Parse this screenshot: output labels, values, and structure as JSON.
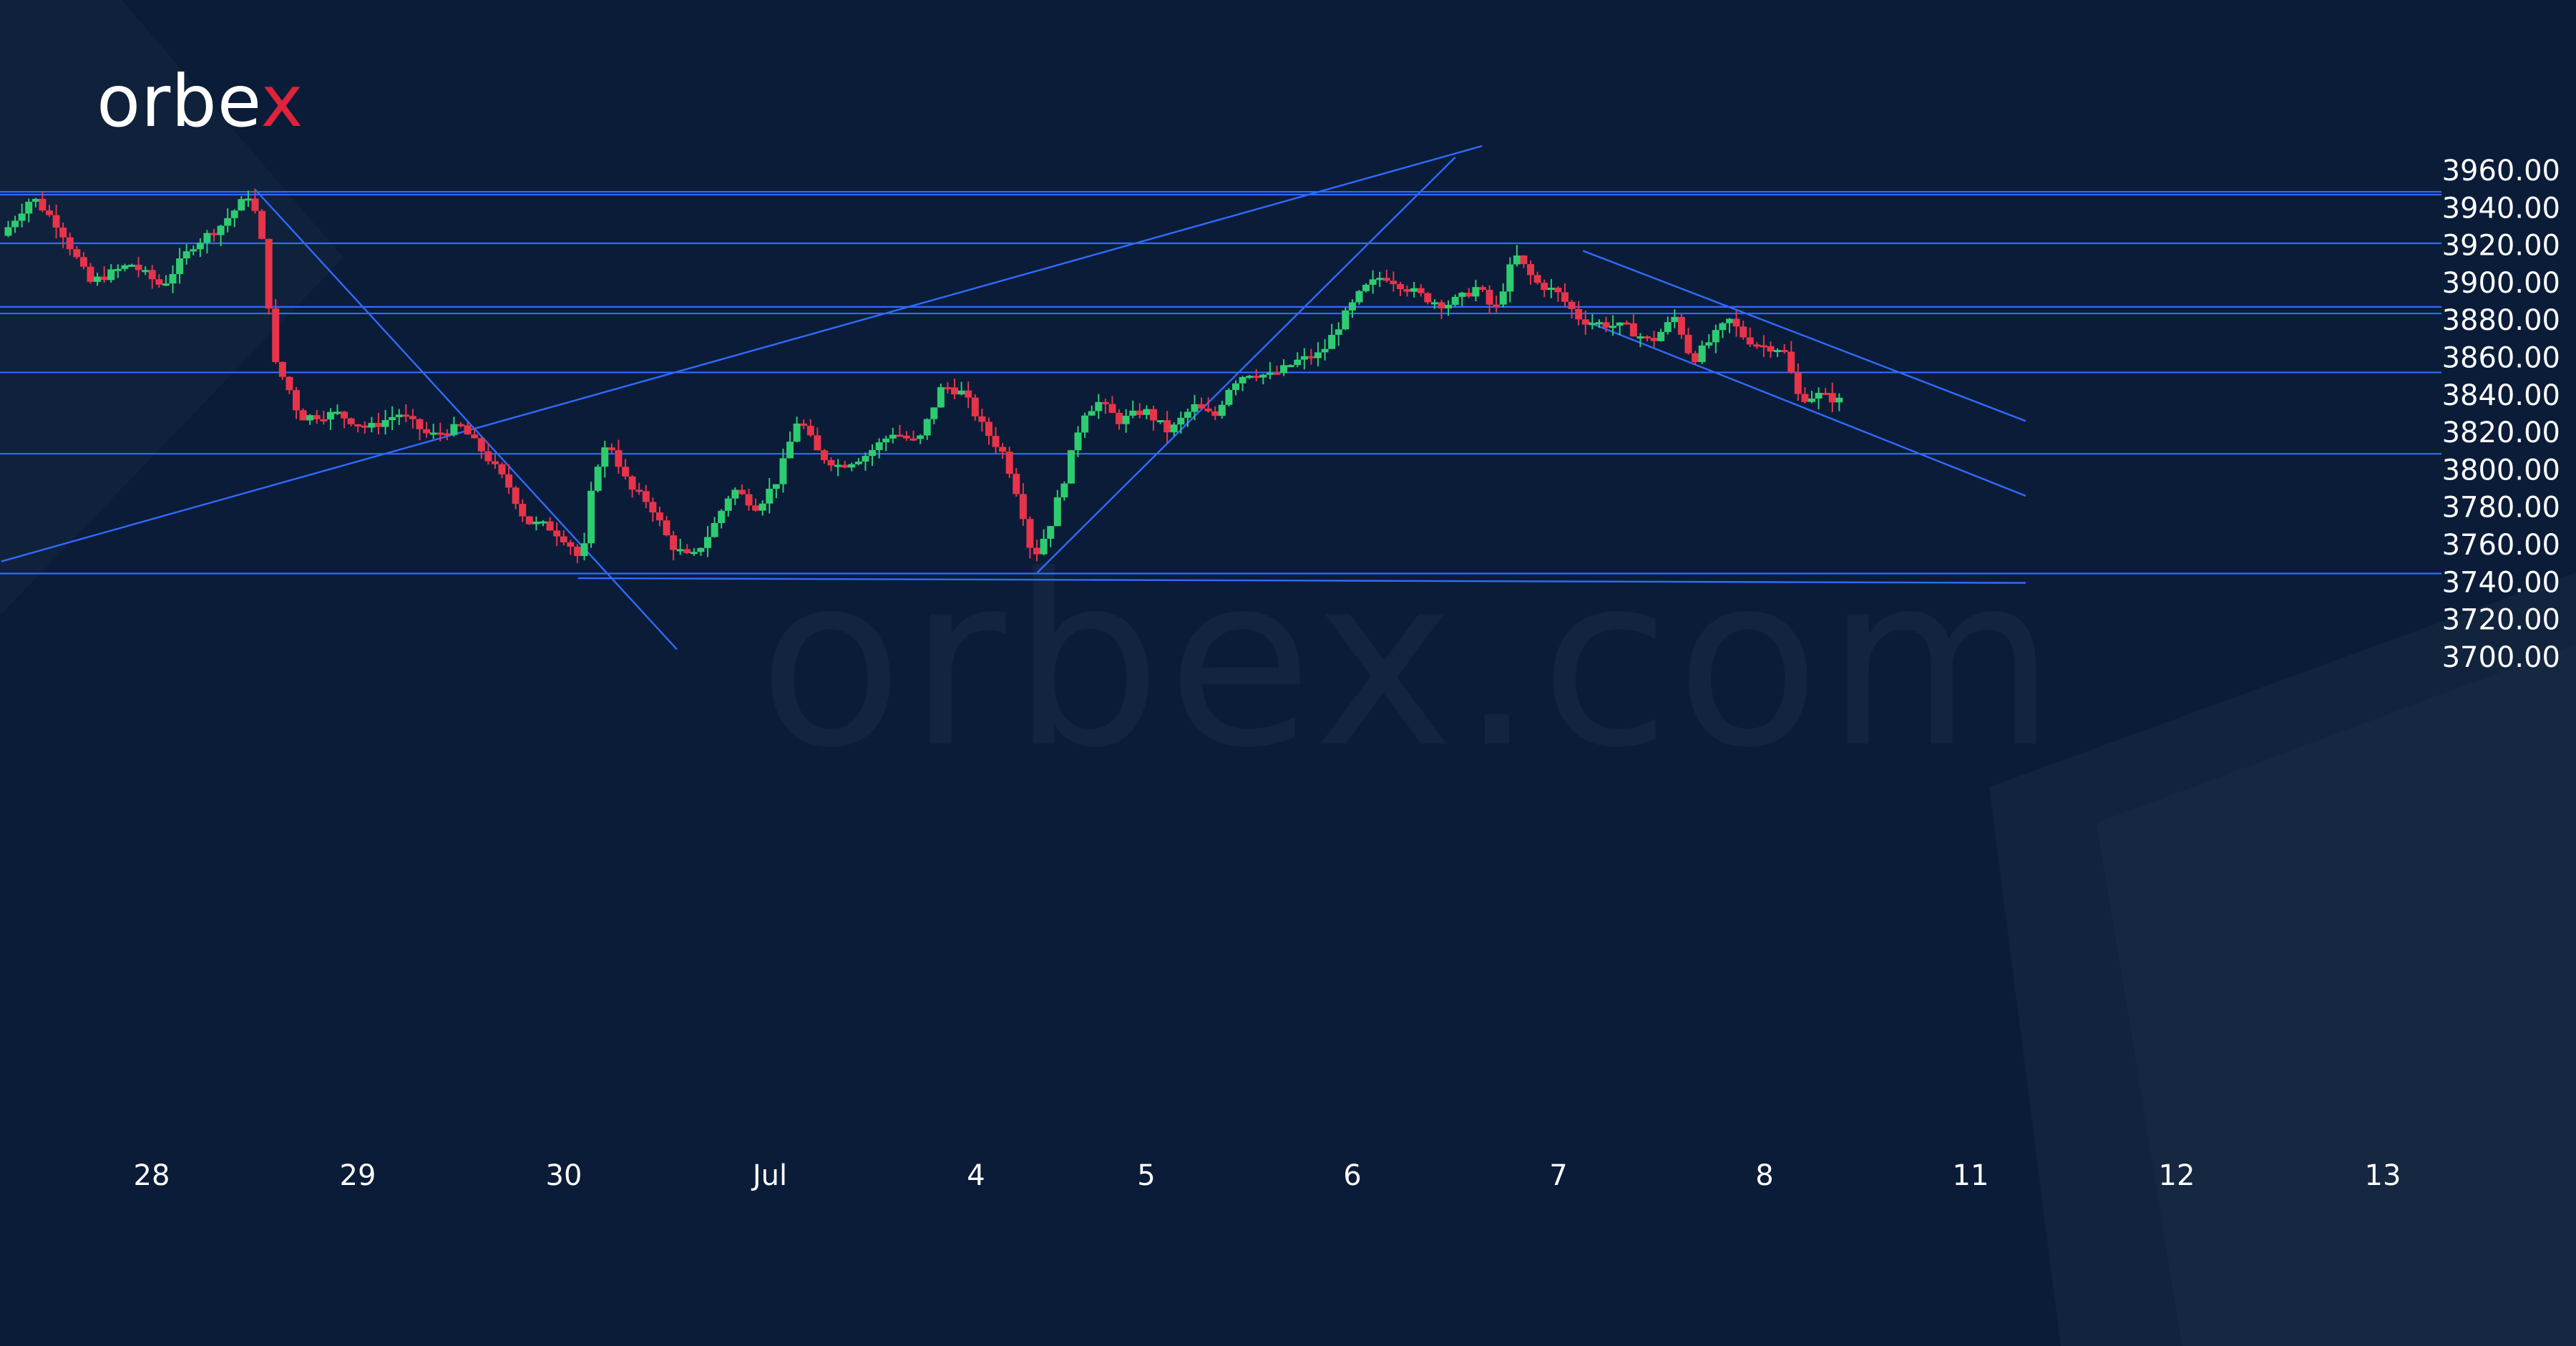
{
  "brand": {
    "logo_text_main": "orbe",
    "logo_text_accent": "x",
    "watermark": "orbex.com",
    "colors": {
      "background": "#0b1c38",
      "accent": "#e0233b",
      "text": "#ffffff"
    }
  },
  "chart_data": {
    "type": "candlestick",
    "title": "",
    "xlabel": "",
    "ylabel": "",
    "ylim": [
      3700,
      3975
    ],
    "y_ticks": [
      "3960.00",
      "3940.00",
      "3920.00",
      "3900.00",
      "3880.00",
      "3860.00",
      "3840.00",
      "3820.00",
      "3800.00",
      "3780.00",
      "3760.00",
      "3740.00",
      "3720.00",
      "3700.00"
    ],
    "x_ticks": [
      "28",
      "29",
      "30",
      "Jul",
      "4",
      "5",
      "6",
      "7",
      "8",
      "11",
      "12",
      "13"
    ],
    "x_range": [
      -0.72,
      10.73
    ],
    "grid": false,
    "colors": {
      "up": "#2ecc71",
      "down": "#e8344a",
      "lines": "#2f6bff",
      "axis_text": "#ffffff"
    },
    "price_path": [
      [
        -0.73,
        3925
      ],
      [
        -0.58,
        3946
      ],
      [
        -0.45,
        3930
      ],
      [
        -0.3,
        3900
      ],
      [
        -0.1,
        3910
      ],
      [
        0.05,
        3898
      ],
      [
        0.2,
        3920
      ],
      [
        0.33,
        3930
      ],
      [
        0.48,
        3948
      ],
      [
        0.56,
        3910
      ],
      [
        0.58,
        3860
      ],
      [
        0.66,
        3845
      ],
      [
        0.72,
        3828
      ],
      [
        0.9,
        3830
      ],
      [
        1.05,
        3822
      ],
      [
        1.2,
        3830
      ],
      [
        1.35,
        3818
      ],
      [
        1.5,
        3823
      ],
      [
        1.62,
        3808
      ],
      [
        1.74,
        3790
      ],
      [
        1.82,
        3772
      ],
      [
        1.92,
        3770
      ],
      [
        2.02,
        3762
      ],
      [
        2.09,
        3750
      ],
      [
        2.15,
        3800
      ],
      [
        2.22,
        3815
      ],
      [
        2.32,
        3790
      ],
      [
        2.42,
        3782
      ],
      [
        2.52,
        3760
      ],
      [
        2.62,
        3752
      ],
      [
        2.72,
        3768
      ],
      [
        2.82,
        3790
      ],
      [
        2.94,
        3780
      ],
      [
        3.04,
        3795
      ],
      [
        3.14,
        3828
      ],
      [
        3.24,
        3808
      ],
      [
        3.34,
        3802
      ],
      [
        3.47,
        3808
      ],
      [
        3.6,
        3820
      ],
      [
        3.72,
        3814
      ],
      [
        3.84,
        3845
      ],
      [
        3.94,
        3841
      ],
      [
        4.04,
        3822
      ],
      [
        4.14,
        3808
      ],
      [
        4.22,
        3782
      ],
      [
        4.28,
        3752
      ],
      [
        4.36,
        3770
      ],
      [
        4.44,
        3798
      ],
      [
        4.52,
        3830
      ],
      [
        4.6,
        3836
      ],
      [
        4.7,
        3826
      ],
      [
        4.82,
        3832
      ],
      [
        4.94,
        3820
      ],
      [
        5.06,
        3834
      ],
      [
        5.16,
        3828
      ],
      [
        5.24,
        3846
      ],
      [
        5.32,
        3852
      ],
      [
        5.44,
        3850
      ],
      [
        5.56,
        3858
      ],
      [
        5.68,
        3862
      ],
      [
        5.78,
        3880
      ],
      [
        5.88,
        3896
      ],
      [
        5.98,
        3904
      ],
      [
        6.08,
        3898
      ],
      [
        6.18,
        3892
      ],
      [
        6.28,
        3888
      ],
      [
        6.36,
        3892
      ],
      [
        6.44,
        3898
      ],
      [
        6.52,
        3884
      ],
      [
        6.62,
        3915
      ],
      [
        6.72,
        3900
      ],
      [
        6.82,
        3895
      ],
      [
        6.94,
        3880
      ],
      [
        7.04,
        3878
      ],
      [
        7.16,
        3876
      ],
      [
        7.28,
        3868
      ],
      [
        7.4,
        3882
      ],
      [
        7.48,
        3858
      ],
      [
        7.56,
        3868
      ],
      [
        7.66,
        3880
      ],
      [
        7.74,
        3870
      ],
      [
        7.82,
        3866
      ],
      [
        7.92,
        3865
      ],
      [
        8.0,
        3838
      ],
      [
        8.1,
        3840
      ],
      [
        8.22,
        3836
      ]
    ],
    "annotations": [
      {
        "type": "horizontal-line",
        "y": 3948.5
      },
      {
        "type": "horizontal-line",
        "y": 3947
      },
      {
        "type": "horizontal-line",
        "y": 3921
      },
      {
        "type": "horizontal-line",
        "y": 3887
      },
      {
        "type": "horizontal-line",
        "y": 3883.5
      },
      {
        "type": "horizontal-line",
        "y": 3852
      },
      {
        "type": "horizontal-line",
        "y": 3808.5
      },
      {
        "type": "horizontal-line",
        "y": 3744.5
      },
      {
        "type": "trend-line",
        "x1": -0.73,
        "y1": 3751,
        "x2": 6.46,
        "y2": 3973
      },
      {
        "type": "trend-line",
        "x1": 0.5,
        "y1": 3950,
        "x2": 2.55,
        "y2": 3704
      },
      {
        "type": "trend-line",
        "x1": 4.3,
        "y1": 3745,
        "x2": 6.33,
        "y2": 3967
      },
      {
        "type": "trend-line",
        "x1": 6.95,
        "y1": 3917,
        "x2": 9.1,
        "y2": 3826
      },
      {
        "type": "trend-line",
        "x1": 6.95,
        "y1": 3880,
        "x2": 9.1,
        "y2": 3786
      },
      {
        "type": "trend-line",
        "x1": 2.07,
        "y1": 3742,
        "x2": 9.1,
        "y2": 3739.5
      }
    ]
  }
}
